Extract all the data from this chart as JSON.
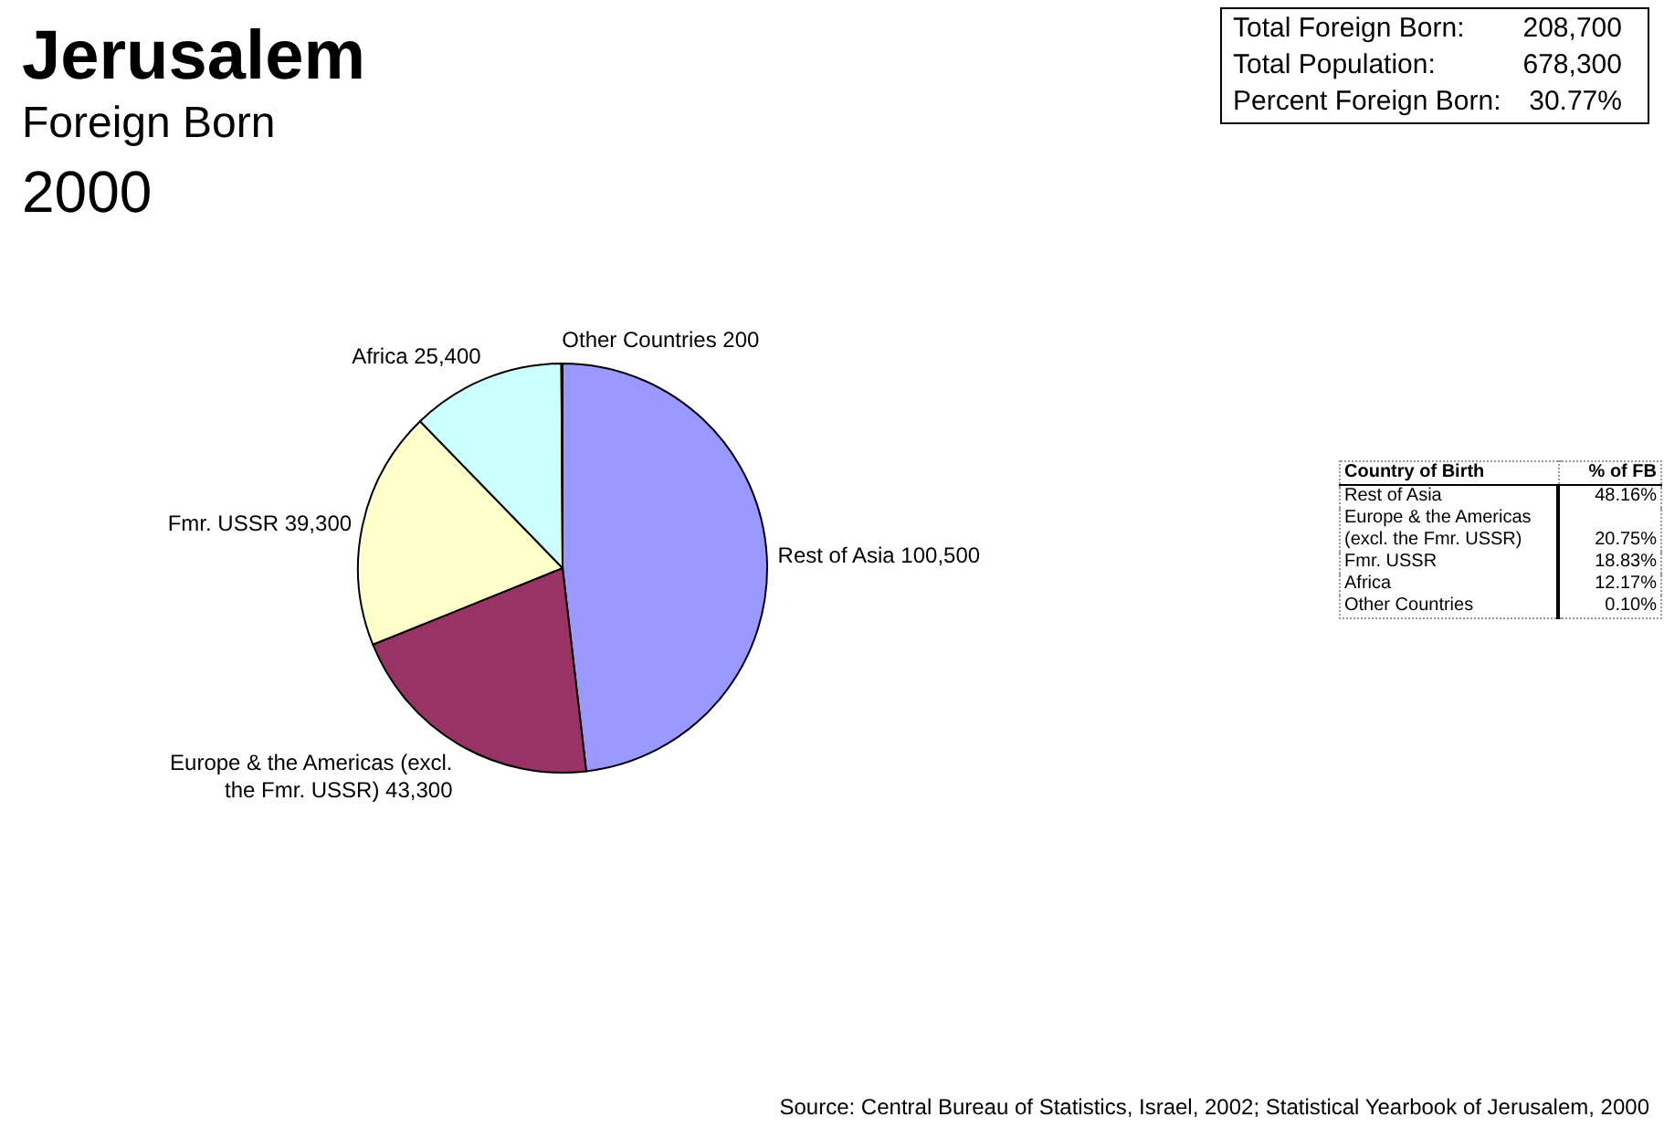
{
  "chart_data": [
    {
      "type": "pie",
      "title": "Jerusalem",
      "subtitle": "Foreign Born",
      "categories": [
        "Rest of Asia",
        "Europe & the Americas (excl. the Fmr. USSR)",
        "Fmr. USSR",
        "Africa",
        "Other Countries"
      ],
      "values": [
        100500,
        43300,
        39300,
        25400,
        200
      ],
      "value_labels": [
        "100,500",
        "43,300",
        "39,300",
        "25,400",
        "200"
      ],
      "colors": [
        "#9999ff",
        "#993366",
        "#ffffcc",
        "#ccffff",
        "#660066"
      ],
      "annotations": [
        "2000",
        "Source: Central Bureau of Statistics, Israel, 2002; Statistical Yearbook of Jerusalem, 2000"
      ]
    },
    {
      "type": "other",
      "annotations": [
        "Total Foreign Born:",
        "208,700",
        "Total Population:",
        "678,300",
        "Percent Foreign Born:",
        "30.77%"
      ]
    },
    {
      "type": "other",
      "annotations": [
        "Country of Birth",
        "% of FB",
        "Rest of Asia",
        "48.16%",
        "Europe & the Americas (excl. the Fmr. USSR)",
        "20.75%",
        "Fmr. USSR",
        "18.83%",
        "Africa",
        "12.17%",
        "Other Countries",
        "0.10%"
      ]
    }
  ]
}
